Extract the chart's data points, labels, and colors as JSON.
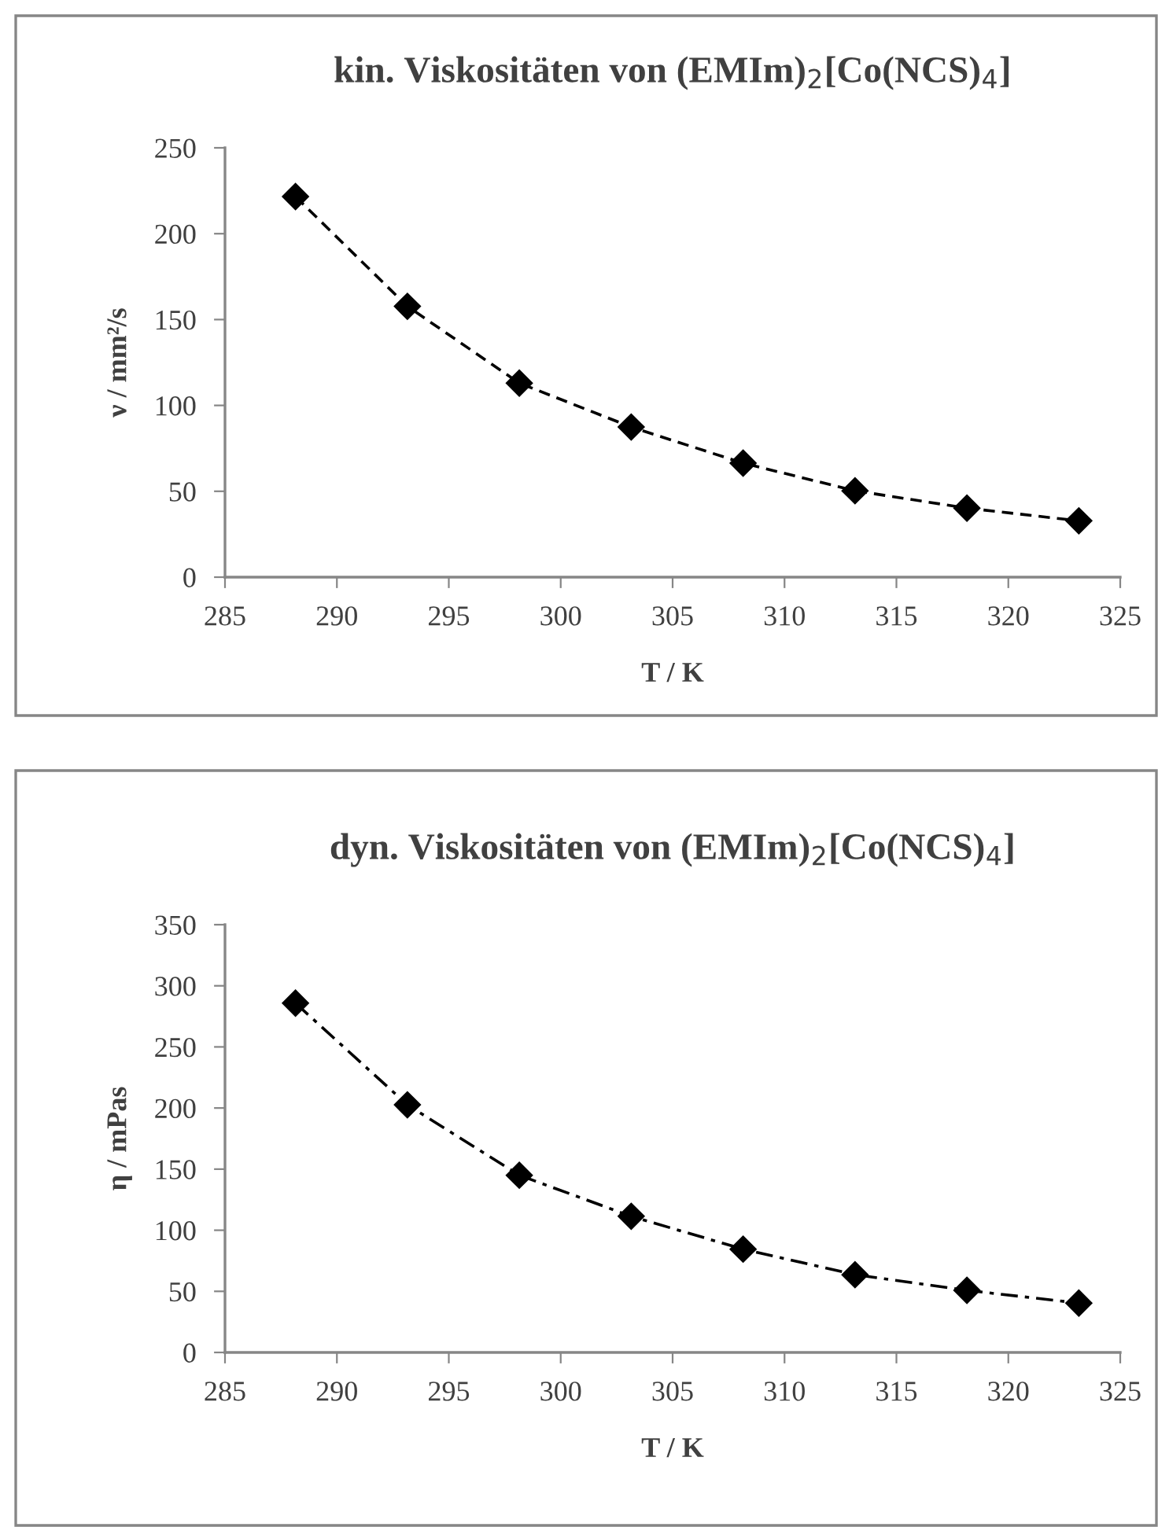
{
  "chart_data": [
    {
      "type": "line",
      "title": "kin. Viskositäten von (EMIm)$_{2}$[Co(NCS)$_{4}$]",
      "xlabel": "T / K",
      "ylabel": "ν / mm²/s",
      "x": [
        288.15,
        293.15,
        298.15,
        303.15,
        308.15,
        313.15,
        318.15,
        323.15
      ],
      "series": [
        {
          "color": "#000000",
          "values": [
            221.6,
            157.7,
            113,
            87.4,
            66.4,
            50.3,
            40.2,
            32.8
          ]
        }
      ],
      "xlim": [
        285,
        325
      ],
      "xticks": [
        285,
        290,
        295,
        300,
        305,
        310,
        315,
        320,
        325
      ],
      "ylim": [
        0,
        250
      ],
      "yticks": [
        0,
        50,
        100,
        150,
        200,
        250
      ],
      "marker": "diamond",
      "line_style": "dashed",
      "grid": false,
      "legend": false
    },
    {
      "type": "line",
      "title": "dyn. Viskositäten von (EMIm)$_{2}$[Co(NCS)$_{4}$]",
      "xlabel": "T / K",
      "ylabel": "η / mPas",
      "x": [
        288.15,
        293.15,
        298.15,
        303.15,
        308.15,
        313.15,
        318.15,
        323.15
      ],
      "series": [
        {
          "color": "#000000",
          "values": [
            285.8,
            202.6,
            145,
            111.4,
            84.5,
            63.6,
            50.8,
            40.4
          ]
        }
      ],
      "xlim": [
        285,
        325
      ],
      "xticks": [
        285,
        290,
        295,
        300,
        305,
        310,
        315,
        320,
        325
      ],
      "ylim": [
        0,
        350
      ],
      "yticks": [
        0,
        50,
        100,
        150,
        200,
        250,
        300,
        350
      ],
      "marker": "diamond",
      "line_style": "dashdot",
      "grid": false,
      "legend": false
    }
  ]
}
